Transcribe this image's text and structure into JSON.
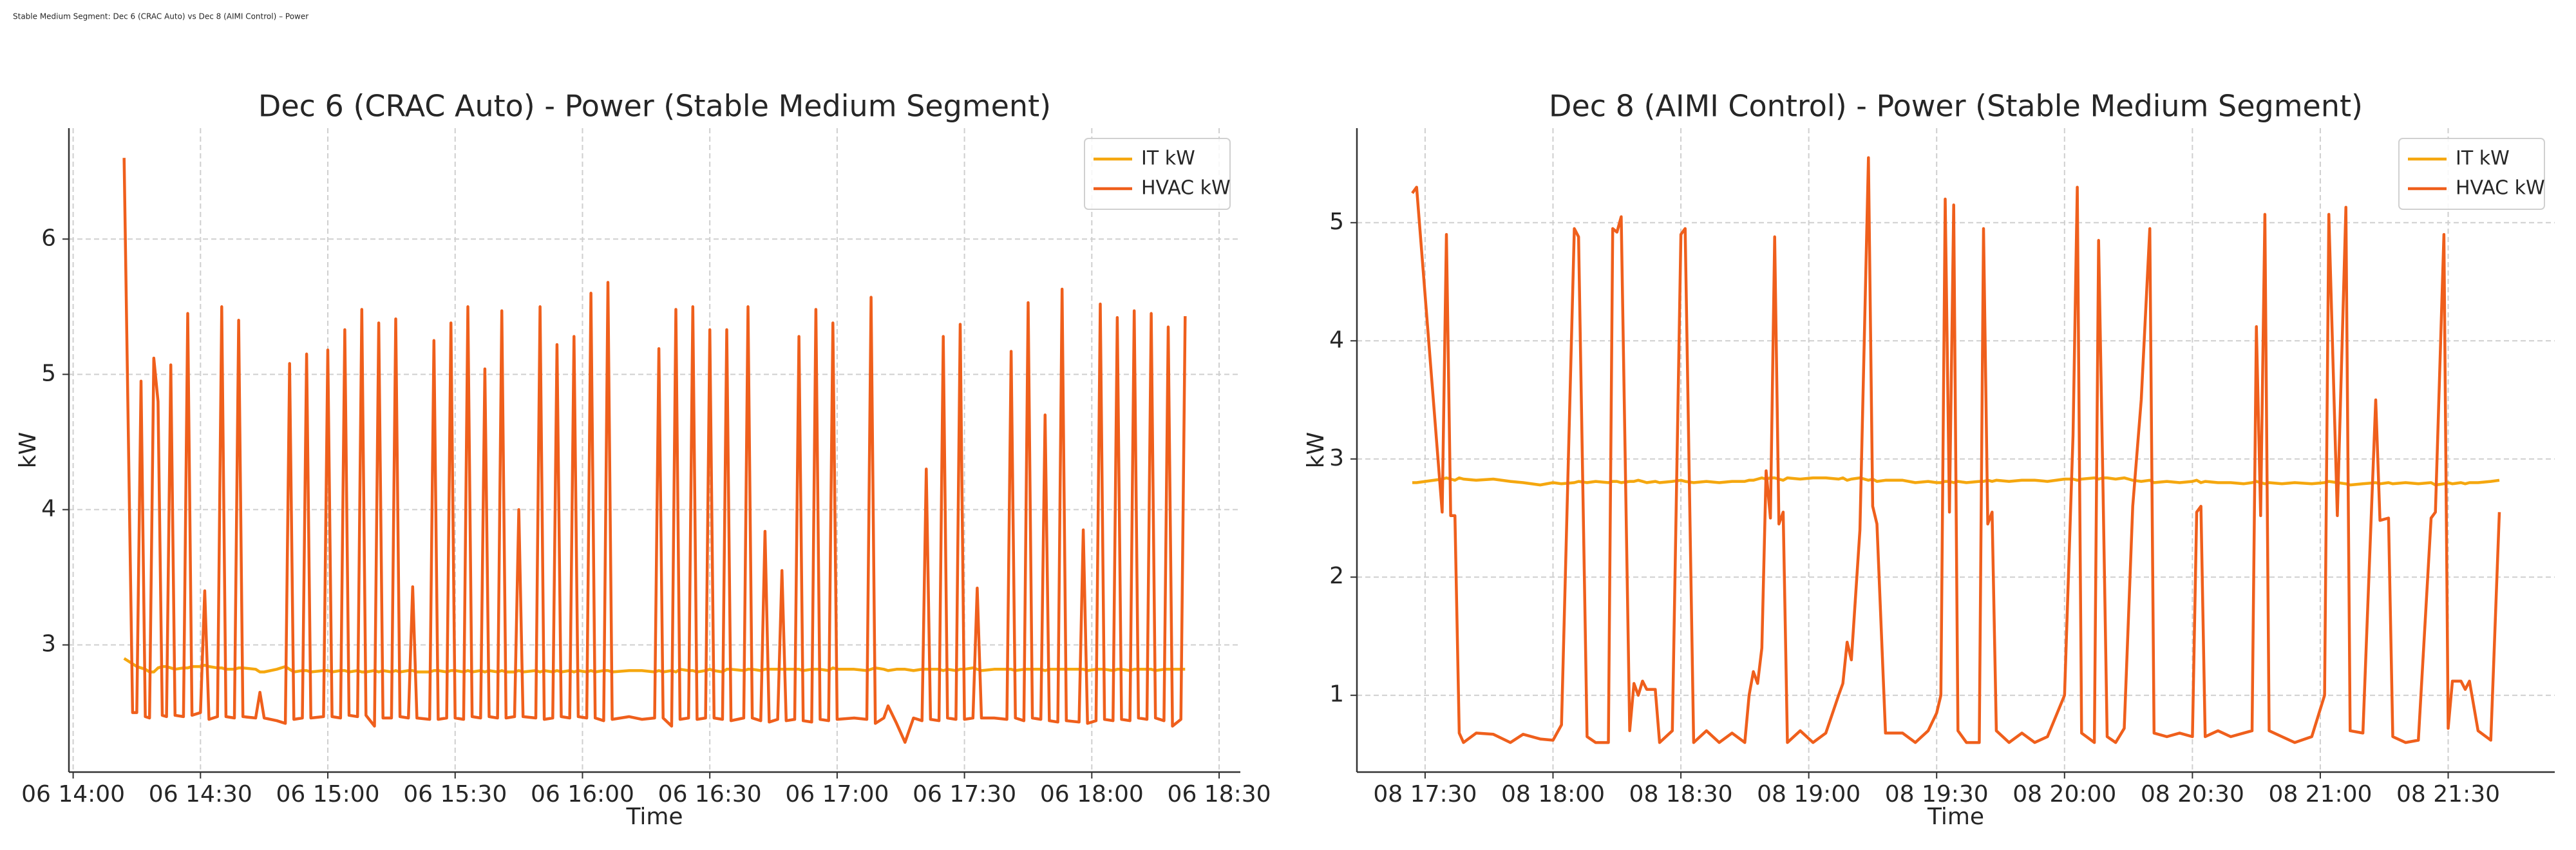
{
  "title": "Stable Medium Segment: Dec 6 (CRAC Auto) vs Dec 8 (AIMI Control) – Power",
  "chart_data": [
    {
      "type": "line",
      "title": "Dec 6 (CRAC Auto) - Power (Stable Medium Segment)",
      "xlabel": "Time",
      "ylabel": "kW",
      "legend": "upper right",
      "grid": true,
      "xlim": [
        "06 13:59",
        "06 18:35"
      ],
      "ylim": [
        2.06,
        6.82
      ],
      "xticks": [
        "06 14:00",
        "06 14:30",
        "06 15:00",
        "06 15:30",
        "06 16:00",
        "06 16:30",
        "06 17:00",
        "06 17:30",
        "06 18:00",
        "06 18:30"
      ],
      "yticks": [
        3,
        4,
        5,
        6
      ],
      "x": [
        "06 14:12",
        "06 14:14",
        "06 14:15",
        "06 14:16",
        "06 14:17",
        "06 14:18",
        "06 14:19",
        "06 14:20",
        "06 14:21",
        "06 14:22",
        "06 14:23",
        "06 14:24",
        "06 14:26",
        "06 14:27",
        "06 14:28",
        "06 14:30",
        "06 14:31",
        "06 14:32",
        "06 14:34",
        "06 14:35",
        "06 14:36",
        "06 14:38",
        "06 14:39",
        "06 14:40",
        "06 14:43",
        "06 14:44",
        "06 14:45",
        "06 14:48",
        "06 14:50",
        "06 14:51",
        "06 14:52",
        "06 14:54",
        "06 14:55",
        "06 14:56",
        "06 14:59",
        "06 15:00",
        "06 15:01",
        "06 15:03",
        "06 15:04",
        "06 15:05",
        "06 15:07",
        "06 15:08",
        "06 15:09",
        "06 15:11",
        "06 15:12",
        "06 15:13",
        "06 15:15",
        "06 15:16",
        "06 15:17",
        "06 15:19",
        "06 15:20",
        "06 15:21",
        "06 15:24",
        "06 15:25",
        "06 15:26",
        "06 15:28",
        "06 15:29",
        "06 15:30",
        "06 15:32",
        "06 15:33",
        "06 15:34",
        "06 15:36",
        "06 15:37",
        "06 15:38",
        "06 15:40",
        "06 15:41",
        "06 15:42",
        "06 15:44",
        "06 15:45",
        "06 15:46",
        "06 15:49",
        "06 15:50",
        "06 15:51",
        "06 15:53",
        "06 15:54",
        "06 15:55",
        "06 15:57",
        "06 15:58",
        "06 15:59",
        "06 16:01",
        "06 16:02",
        "06 16:03",
        "06 16:05",
        "06 16:06",
        "06 16:07",
        "06 16:11",
        "06 16:14",
        "06 16:17",
        "06 16:18",
        "06 16:19",
        "06 16:21",
        "06 16:22",
        "06 16:23",
        "06 16:25",
        "06 16:26",
        "06 16:27",
        "06 16:29",
        "06 16:30",
        "06 16:31",
        "06 16:33",
        "06 16:34",
        "06 16:35",
        "06 16:38",
        "06 16:39",
        "06 16:40",
        "06 16:42",
        "06 16:43",
        "06 16:44",
        "06 16:46",
        "06 16:47",
        "06 16:48",
        "06 16:50",
        "06 16:51",
        "06 16:52",
        "06 16:54",
        "06 16:55",
        "06 16:56",
        "06 16:58",
        "06 16:59",
        "06 17:00",
        "06 17:04",
        "06 17:07",
        "06 17:08",
        "06 17:09",
        "06 17:11",
        "06 17:12",
        "06 17:14",
        "06 17:16",
        "06 17:18",
        "06 17:20",
        "06 17:21",
        "06 17:22",
        "06 17:24",
        "06 17:25",
        "06 17:26",
        "06 17:28",
        "06 17:29",
        "06 17:30",
        "06 17:32",
        "06 17:33",
        "06 17:34",
        "06 17:37",
        "06 17:40",
        "06 17:41",
        "06 17:42",
        "06 17:44",
        "06 17:45",
        "06 17:46",
        "06 17:48",
        "06 17:49",
        "06 17:50",
        "06 17:52",
        "06 17:53",
        "06 17:54",
        "06 17:57",
        "06 17:58",
        "06 17:59",
        "06 18:01",
        "06 18:02",
        "06 18:03",
        "06 18:05",
        "06 18:06",
        "06 18:07",
        "06 18:09",
        "06 18:10",
        "06 18:11",
        "06 18:13",
        "06 18:14",
        "06 18:15",
        "06 18:17",
        "06 18:18",
        "06 18:19",
        "06 18:21",
        "06 18:22"
      ],
      "series": [
        {
          "name": "IT kW",
          "color": "#f5a70f",
          "values": [
            2.9,
            2.86,
            2.84,
            2.83,
            2.82,
            2.8,
            2.8,
            2.83,
            2.84,
            2.84,
            2.83,
            2.82,
            2.83,
            2.83,
            2.84,
            2.84,
            2.85,
            2.84,
            2.83,
            2.83,
            2.82,
            2.82,
            2.83,
            2.83,
            2.82,
            2.8,
            2.8,
            2.82,
            2.84,
            2.82,
            2.8,
            2.81,
            2.81,
            2.8,
            2.81,
            2.81,
            2.8,
            2.81,
            2.81,
            2.8,
            2.81,
            2.8,
            2.8,
            2.81,
            2.8,
            2.81,
            2.8,
            2.81,
            2.8,
            2.81,
            2.81,
            2.8,
            2.8,
            2.81,
            2.81,
            2.8,
            2.81,
            2.81,
            2.8,
            2.81,
            2.8,
            2.81,
            2.8,
            2.81,
            2.8,
            2.81,
            2.8,
            2.8,
            2.81,
            2.8,
            2.81,
            2.8,
            2.81,
            2.8,
            2.81,
            2.8,
            2.81,
            2.8,
            2.81,
            2.8,
            2.81,
            2.8,
            2.81,
            2.81,
            2.8,
            2.81,
            2.81,
            2.8,
            2.81,
            2.8,
            2.81,
            2.8,
            2.82,
            2.81,
            2.81,
            2.8,
            2.81,
            2.82,
            2.81,
            2.8,
            2.82,
            2.82,
            2.81,
            2.82,
            2.82,
            2.81,
            2.82,
            2.82,
            2.82,
            2.82,
            2.82,
            2.82,
            2.82,
            2.81,
            2.82,
            2.82,
            2.82,
            2.81,
            2.83,
            2.82,
            2.82,
            2.81,
            2.82,
            2.83,
            2.82,
            2.81,
            2.82,
            2.82,
            2.81,
            2.82,
            2.82,
            2.82,
            2.82,
            2.81,
            2.82,
            2.81,
            2.82,
            2.82,
            2.83,
            2.82,
            2.81,
            2.82,
            2.82,
            2.82,
            2.81,
            2.82,
            2.82,
            2.82,
            2.82,
            2.81,
            2.82,
            2.82,
            2.82,
            2.82,
            2.82,
            2.82,
            2.81,
            2.82,
            2.82,
            2.82,
            2.81,
            2.82,
            2.82,
            2.81,
            2.82,
            2.82,
            2.82,
            2.82,
            2.81,
            2.82,
            2.82,
            2.82,
            2.82,
            2.82
          ]
        },
        {
          "name": "HVAC kW",
          "color": "#ef5f1c",
          "values": [
            6.6,
            2.5,
            2.5,
            4.95,
            2.47,
            2.46,
            5.12,
            4.8,
            2.48,
            2.47,
            5.07,
            2.48,
            2.47,
            5.45,
            2.48,
            2.5,
            3.4,
            2.45,
            2.47,
            5.5,
            2.47,
            2.46,
            5.4,
            2.47,
            2.46,
            2.65,
            2.46,
            2.44,
            2.42,
            5.08,
            2.45,
            2.46,
            5.15,
            2.46,
            2.47,
            5.18,
            2.47,
            2.46,
            5.33,
            2.48,
            2.47,
            5.48,
            2.48,
            2.4,
            5.38,
            2.46,
            2.46,
            5.41,
            2.47,
            2.46,
            3.43,
            2.46,
            2.45,
            5.25,
            2.45,
            2.46,
            5.38,
            2.46,
            2.45,
            5.5,
            2.47,
            2.46,
            5.04,
            2.47,
            2.46,
            5.47,
            2.46,
            2.47,
            4.0,
            2.47,
            2.46,
            5.5,
            2.45,
            2.46,
            5.22,
            2.47,
            2.46,
            5.28,
            2.47,
            2.46,
            5.6,
            2.46,
            2.44,
            5.68,
            2.45,
            2.47,
            2.45,
            2.46,
            5.19,
            2.46,
            2.4,
            5.48,
            2.45,
            2.46,
            5.5,
            2.45,
            2.46,
            5.33,
            2.46,
            2.45,
            5.33,
            2.44,
            2.46,
            5.5,
            2.46,
            2.44,
            3.84,
            2.43,
            2.45,
            3.55,
            2.44,
            2.45,
            5.28,
            2.44,
            2.43,
            5.48,
            2.45,
            2.44,
            5.38,
            2.45,
            2.46,
            2.45,
            5.57,
            2.42,
            2.46,
            2.55,
            2.42,
            2.28,
            2.46,
            2.44,
            4.3,
            2.45,
            2.44,
            5.28,
            2.46,
            2.45,
            5.37,
            2.45,
            2.46,
            3.42,
            2.46,
            2.46,
            2.45,
            5.17,
            2.46,
            2.44,
            5.53,
            2.46,
            2.45,
            4.7,
            2.44,
            2.43,
            5.63,
            2.44,
            2.43,
            3.85,
            2.42,
            2.44,
            5.52,
            2.45,
            2.44,
            5.42,
            2.45,
            2.44,
            5.47,
            2.46,
            2.45,
            5.45,
            2.46,
            2.44,
            5.35,
            2.4,
            2.45,
            5.43
          ]
        }
      ]
    },
    {
      "type": "line",
      "title": "Dec 8 (AIMI Control) - Power (Stable Medium Segment)",
      "xlabel": "Time",
      "ylabel": "kW",
      "legend": "upper right",
      "grid": true,
      "xlim": [
        "08 17:14",
        "08 21:55"
      ],
      "ylim": [
        0.35,
        5.8
      ],
      "xticks": [
        "08 17:30",
        "08 18:00",
        "08 18:30",
        "08 19:00",
        "08 19:30",
        "08 20:00",
        "08 20:30",
        "08 21:00",
        "08 21:30"
      ],
      "yticks": [
        1,
        2,
        3,
        4,
        5
      ],
      "x": [
        "08 17:27",
        "08 17:28",
        "08 17:34",
        "08 17:35",
        "08 17:36",
        "08 17:37",
        "08 17:38",
        "08 17:39",
        "08 17:42",
        "08 17:46",
        "08 17:50",
        "08 17:53",
        "08 17:57",
        "08 18:00",
        "08 18:02",
        "08 18:05",
        "08 18:06",
        "08 18:08",
        "08 18:10",
        "08 18:13",
        "08 18:14",
        "08 18:15",
        "08 18:16",
        "08 18:18",
        "08 18:19",
        "08 18:20",
        "08 18:21",
        "08 18:22",
        "08 18:24",
        "08 18:25",
        "08 18:28",
        "08 18:30",
        "08 18:31",
        "08 18:33",
        "08 18:36",
        "08 18:39",
        "08 18:42",
        "08 18:45",
        "08 18:46",
        "08 18:47",
        "08 18:48",
        "08 18:49",
        "08 18:50",
        "08 18:51",
        "08 18:52",
        "08 18:53",
        "08 18:54",
        "08 18:55",
        "08 18:58",
        "08 19:01",
        "08 19:04",
        "08 19:07",
        "08 19:08",
        "08 19:09",
        "08 19:10",
        "08 19:12",
        "08 19:14",
        "08 19:15",
        "08 19:16",
        "08 19:18",
        "08 19:22",
        "08 19:25",
        "08 19:28",
        "08 19:30",
        "08 19:31",
        "08 19:32",
        "08 19:33",
        "08 19:34",
        "08 19:35",
        "08 19:37",
        "08 19:40",
        "08 19:41",
        "08 19:42",
        "08 19:43",
        "08 19:44",
        "08 19:47",
        "08 19:50",
        "08 19:53",
        "08 19:56",
        "08 20:00",
        "08 20:02",
        "08 20:03",
        "08 20:04",
        "08 20:07",
        "08 20:08",
        "08 20:09",
        "08 20:10",
        "08 20:12",
        "08 20:14",
        "08 20:16",
        "08 20:18",
        "08 20:20",
        "08 20:21",
        "08 20:24",
        "08 20:27",
        "08 20:30",
        "08 20:31",
        "08 20:32",
        "08 20:33",
        "08 20:36",
        "08 20:39",
        "08 20:42",
        "08 20:44",
        "08 20:45",
        "08 20:46",
        "08 20:47",
        "08 20:48",
        "08 20:51",
        "08 20:54",
        "08 20:58",
        "08 21:01",
        "08 21:02",
        "08 21:04",
        "08 21:06",
        "08 21:07",
        "08 21:10",
        "08 21:13",
        "08 21:14",
        "08 21:16",
        "08 21:17",
        "08 21:20",
        "08 21:23",
        "08 21:26",
        "08 21:27",
        "08 21:29",
        "08 21:30",
        "08 21:31",
        "08 21:33",
        "08 21:34",
        "08 21:35",
        "08 21:37",
        "08 21:40",
        "08 21:42"
      ],
      "series": [
        {
          "name": "IT kW",
          "color": "#f5a70f",
          "values": [
            2.8,
            2.8,
            2.83,
            2.84,
            2.83,
            2.82,
            2.84,
            2.83,
            2.82,
            2.83,
            2.81,
            2.8,
            2.78,
            2.8,
            2.79,
            2.8,
            2.81,
            2.8,
            2.81,
            2.8,
            2.81,
            2.81,
            2.8,
            2.81,
            2.81,
            2.82,
            2.81,
            2.8,
            2.81,
            2.8,
            2.81,
            2.82,
            2.81,
            2.8,
            2.81,
            2.8,
            2.81,
            2.81,
            2.82,
            2.82,
            2.83,
            2.84,
            2.83,
            2.84,
            2.84,
            2.83,
            2.82,
            2.84,
            2.83,
            2.84,
            2.84,
            2.83,
            2.84,
            2.82,
            2.83,
            2.84,
            2.82,
            2.83,
            2.81,
            2.82,
            2.82,
            2.8,
            2.81,
            2.8,
            2.8,
            2.81,
            2.81,
            2.8,
            2.81,
            2.8,
            2.81,
            2.81,
            2.82,
            2.81,
            2.82,
            2.81,
            2.82,
            2.82,
            2.81,
            2.83,
            2.83,
            2.82,
            2.83,
            2.84,
            2.83,
            2.84,
            2.84,
            2.83,
            2.84,
            2.82,
            2.81,
            2.82,
            2.8,
            2.81,
            2.8,
            2.81,
            2.82,
            2.8,
            2.81,
            2.8,
            2.8,
            2.79,
            2.8,
            2.81,
            2.8,
            2.79,
            2.8,
            2.79,
            2.8,
            2.79,
            2.8,
            2.81,
            2.8,
            2.79,
            2.78,
            2.79,
            2.8,
            2.79,
            2.8,
            2.79,
            2.8,
            2.79,
            2.8,
            2.78,
            2.79,
            2.8,
            2.79,
            2.8,
            2.79,
            2.8,
            2.8,
            2.81,
            2.82
          ]
        },
        {
          "name": "HVAC kW",
          "color": "#ef5f1c",
          "values": [
            5.25,
            5.3,
            2.55,
            4.9,
            2.52,
            2.52,
            0.68,
            0.6,
            0.68,
            0.67,
            0.6,
            0.67,
            0.63,
            0.62,
            0.75,
            4.95,
            4.88,
            0.65,
            0.6,
            0.6,
            4.95,
            4.92,
            5.05,
            0.7,
            1.1,
            1.0,
            1.12,
            1.05,
            1.05,
            0.6,
            0.7,
            4.9,
            4.95,
            0.6,
            0.7,
            0.6,
            0.68,
            0.6,
            1.0,
            1.2,
            1.1,
            1.4,
            2.9,
            2.5,
            4.88,
            2.45,
            2.55,
            0.6,
            0.7,
            0.6,
            0.68,
            1.0,
            1.1,
            1.45,
            1.3,
            2.4,
            5.55,
            2.6,
            2.45,
            0.68,
            0.68,
            0.6,
            0.7,
            0.85,
            1.0,
            5.2,
            2.55,
            5.15,
            0.7,
            0.6,
            0.6,
            4.95,
            2.45,
            2.55,
            0.7,
            0.6,
            0.68,
            0.6,
            0.65,
            1.0,
            3.2,
            5.3,
            0.68,
            0.6,
            4.85,
            2.8,
            0.65,
            0.6,
            0.72,
            2.6,
            3.5,
            4.95,
            0.68,
            0.65,
            0.68,
            0.65,
            2.55,
            2.6,
            0.65,
            0.7,
            0.65,
            0.68,
            0.7,
            4.12,
            2.52,
            5.07,
            0.7,
            0.65,
            0.6,
            0.65,
            1.0,
            5.07,
            2.52,
            5.13,
            0.7,
            0.68,
            3.5,
            2.48,
            2.5,
            0.65,
            0.6,
            0.62,
            2.5,
            2.55,
            4.9,
            0.72,
            1.12,
            1.12,
            1.05,
            1.12,
            0.7,
            0.62,
            2.55
          ]
        }
      ]
    }
  ]
}
